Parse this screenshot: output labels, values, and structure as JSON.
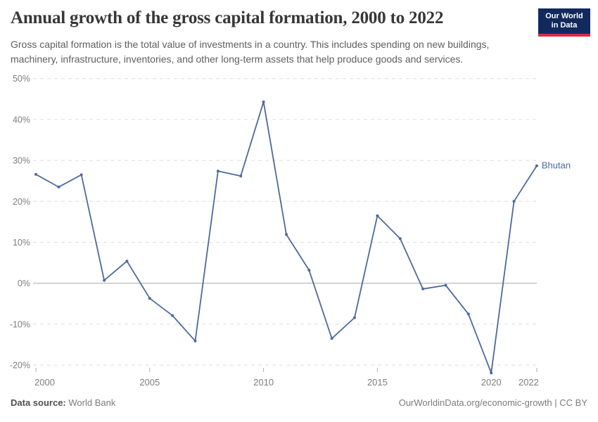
{
  "header": {
    "title": "Annual growth of the gross capital formation, 2000 to 2022",
    "subtitle": "Gross capital formation is the total value of investments in a country. This includes spending on new buildings, machinery, infrastructure, inventories, and other long-term assets that help produce goods and services.",
    "logo": {
      "line1": "Our World",
      "line2": "in Data",
      "bg_color": "#12295E",
      "bar_color": "#DC2A3F"
    }
  },
  "chart_data": {
    "type": "line",
    "title": "Annual growth of the gross capital formation, 2000 to 2022",
    "x": [
      2000,
      2001,
      2002,
      2003,
      2004,
      2005,
      2006,
      2007,
      2008,
      2009,
      2010,
      2011,
      2012,
      2013,
      2014,
      2015,
      2016,
      2017,
      2018,
      2019,
      2020,
      2021,
      2022
    ],
    "series": [
      {
        "name": "Bhutan",
        "color": "#4C6A9C",
        "values": [
          26.6,
          23.5,
          26.5,
          0.7,
          5.4,
          -3.7,
          -7.9,
          -14.1,
          27.4,
          26.2,
          44.3,
          11.9,
          3.2,
          -13.5,
          -8.4,
          16.5,
          10.9,
          -1.4,
          -0.5,
          -7.5,
          -21.9,
          20.0,
          28.7
        ]
      }
    ],
    "x_ticks": [
      2000,
      2005,
      2010,
      2015,
      2020,
      2022
    ],
    "y_ticks": [
      50,
      40,
      30,
      20,
      10,
      0,
      -10,
      -20
    ],
    "y_tick_suffix": "%",
    "ylim": [
      -22.5,
      51
    ],
    "xlabel": "",
    "ylabel": "",
    "grid": "horizontal-dashed",
    "zero_line": true,
    "legend_position": "end-of-line-label",
    "axis_text_color": "#7d7d7d",
    "gridline_color": "#dedede",
    "zero_line_color": "#a8a8a8"
  },
  "footer": {
    "source_label": "Data source:",
    "source_value": "World Bank",
    "attribution": "OurWorldinData.org/economic-growth | CC BY"
  }
}
